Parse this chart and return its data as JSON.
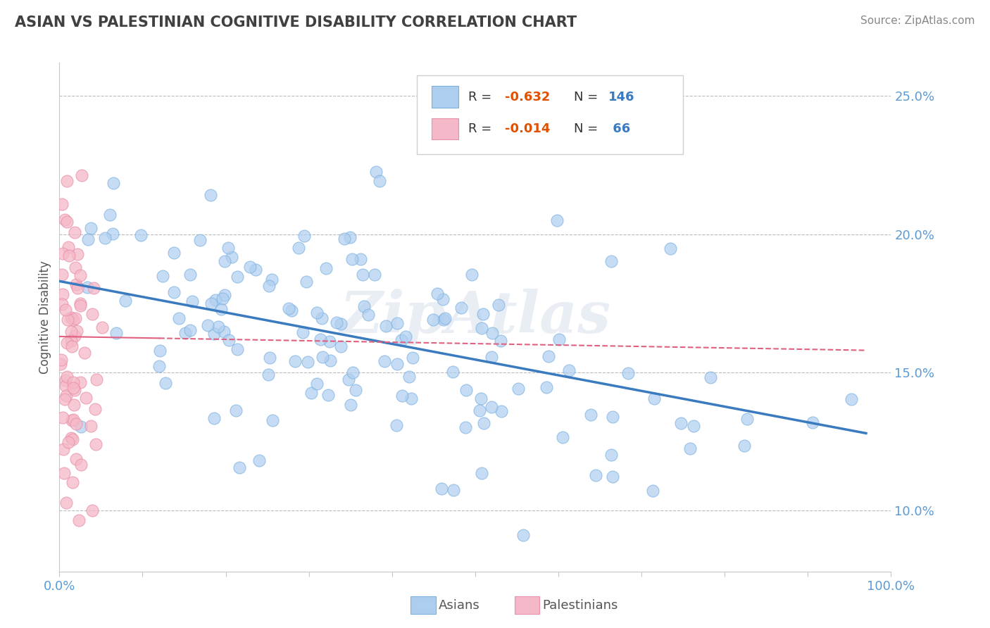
{
  "title": "ASIAN VS PALESTINIAN COGNITIVE DISABILITY CORRELATION CHART",
  "source": "Source: ZipAtlas.com",
  "ylabel": "Cognitive Disability",
  "xlim": [
    0,
    1.0
  ],
  "ylim": [
    0.078,
    0.262
  ],
  "asian_R": -0.632,
  "asian_N": 146,
  "palestinian_R": -0.014,
  "palestinian_N": 66,
  "asian_color": "#aecef0",
  "asian_edge_color": "#7ab0e0",
  "asian_line_color": "#3a7abf",
  "palestinian_color": "#f5b8c8",
  "palestinian_edge_color": "#e890a8",
  "palestinian_line_color": "#e06080",
  "title_color": "#404040",
  "axis_label_color": "#555555",
  "tick_color": "#5b9bd5",
  "grid_color": "#bbbbbb",
  "background_color": "#ffffff",
  "watermark": "ZipAtlas",
  "legend_r_color": "#e05000",
  "legend_n_color": "#3a7abf",
  "legend_label_color": "#333333",
  "yticks": [
    0.1,
    0.15,
    0.2,
    0.25
  ],
  "ytick_labels": [
    "10.0%",
    "15.0%",
    "20.0%",
    "25.0%"
  ],
  "asian_trend_x0": 0.0,
  "asian_trend_y0": 0.183,
  "asian_trend_x1": 0.97,
  "asian_trend_y1": 0.128,
  "pal_trend_x0": 0.0,
  "pal_trend_y0": 0.163,
  "pal_trend_x1": 0.97,
  "pal_trend_y1": 0.158
}
